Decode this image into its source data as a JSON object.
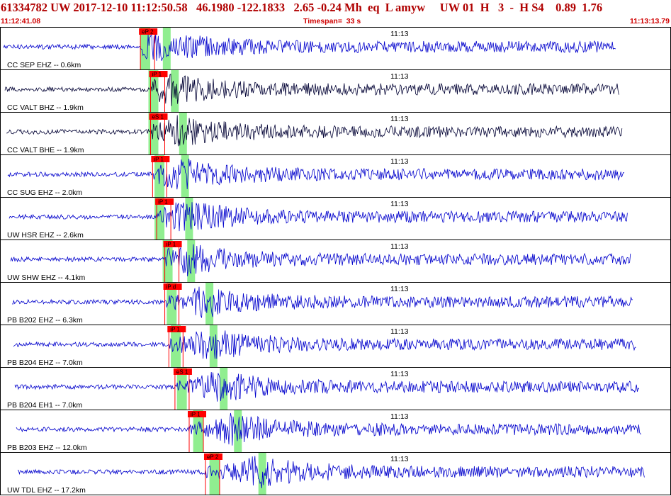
{
  "header": {
    "summary": "61334782 UW 2017-12-10 11:12:50.58   46.1980 -122.1833   2.65 -0.24 Mh  eq  L amyw     UW 01  H   3  -  H S4    0.89  1.76",
    "start_time": "11:12:41.08",
    "timespan": "Timespan=  33 s",
    "end_time": "11:13:13.79"
  },
  "colors": {
    "header_text": "#b00000",
    "trace_blue": "#0000cc",
    "trace_black": "#000033",
    "pick_red": "#ff0000",
    "pick_green": "#90ee90",
    "panel_border": "#000000"
  },
  "time_mark_label": "11:13",
  "traces": [
    {
      "label": "CC SEP EHZ -- 0.6km",
      "pick": "eP 2",
      "color": "blue",
      "pick_time": 6.8,
      "s_time": 7.8,
      "green": [
        6.9,
        7.6
      ]
    },
    {
      "label": "CC VALT BHZ -- 1.9km",
      "pick": "iP 1",
      "color": "black",
      "pick_time": 7.3,
      "s_time": 8.2,
      "green": [
        7.3,
        8.0
      ]
    },
    {
      "label": "CC VALT BHE -- 1.9km",
      "pick": "eS 1",
      "color": "black",
      "pick_time": 7.3,
      "s_time": 8.6,
      "green": [
        7.3,
        8.6
      ]
    },
    {
      "label": "CC SUG EHZ -- 2.0km",
      "pick": "iP 1",
      "color": "blue",
      "pick_time": 7.4,
      "s_time": 8.7,
      "green": [
        7.6,
        8.4
      ]
    },
    {
      "label": "UW HSR EHZ -- 2.6km",
      "pick": "iP 1",
      "color": "blue",
      "pick_time": 7.6,
      "s_time": 8.9,
      "green": [
        7.6,
        8.8
      ]
    },
    {
      "label": "UW SHW EHZ -- 4.1km",
      "pick": "iP 1",
      "color": "blue",
      "pick_time": 8.0,
      "s_time": 9.0,
      "green": [
        8.0,
        8.9
      ]
    },
    {
      "label": "PB B202 EHZ -- 6.3km",
      "pick": "iP d",
      "color": "blue",
      "pick_time": 8.0,
      "s_time": 9.9,
      "green": [
        8.2,
        10.0
      ]
    },
    {
      "label": "PB B204 EHZ -- 7.0km",
      "pick": "iP 1",
      "color": "blue",
      "pick_time": 8.2,
      "s_time": 10.1,
      "green": [
        8.4,
        10.2
      ]
    },
    {
      "label": "PB B204 EH1 -- 7.0km",
      "pick": "eS 1",
      "color": "blue",
      "pick_time": 8.5,
      "s_time": 10.6,
      "green": [
        8.7,
        10.6
      ]
    },
    {
      "label": "PB B203 EHZ -- 12.0km",
      "pick": "iP 1",
      "color": "blue",
      "pick_time": 9.2,
      "s_time": 11.3,
      "green": [
        9.5,
        11.7
      ]
    },
    {
      "label": "UW TDL EHZ -- 17.2km",
      "pick": "eP 2",
      "color": "blue",
      "pick_time": 10.0,
      "s_time": 12.5,
      "green": [
        10.3,
        13.1
      ]
    }
  ]
}
